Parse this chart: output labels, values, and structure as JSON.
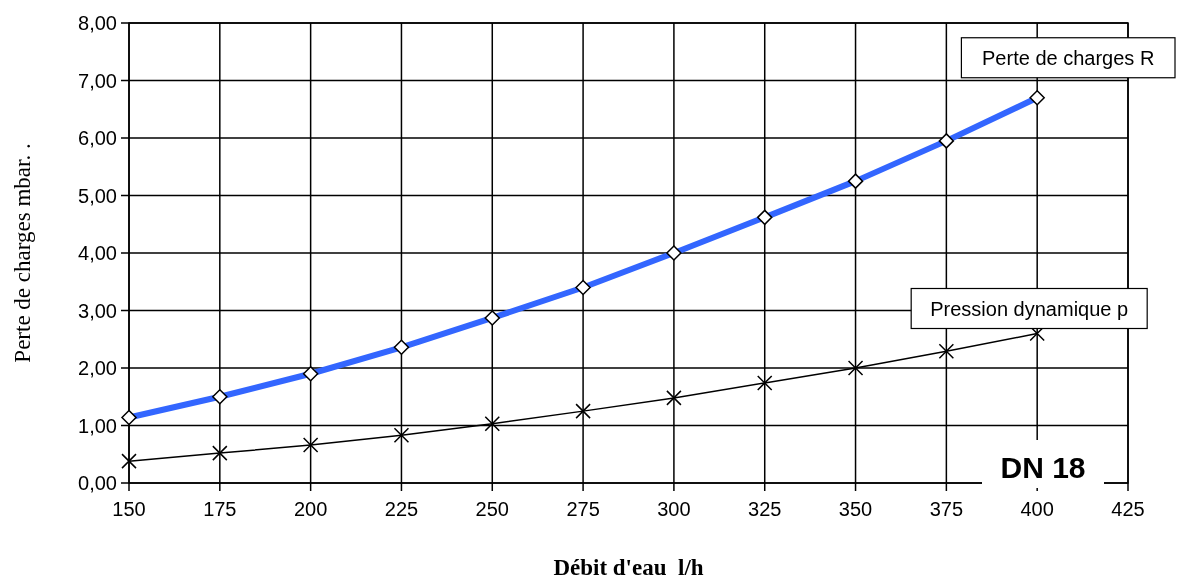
{
  "chart_data": {
    "type": "line",
    "xlabel": "Débit d'eau  l/h",
    "ylabel": "Perte de charges mbar. .",
    "x": [
      150,
      175,
      200,
      225,
      250,
      275,
      300,
      325,
      350,
      375,
      400
    ],
    "series": [
      {
        "name": "Perte de charges R",
        "color": "#3366ff",
        "marker": "diamond",
        "values": [
          1.14,
          1.5,
          1.9,
          2.36,
          2.87,
          3.4,
          4.0,
          4.62,
          5.25,
          5.95,
          6.7
        ]
      },
      {
        "name": "Pression dynamique p",
        "color": "#000000",
        "marker": "cross",
        "values": [
          0.38,
          0.52,
          0.66,
          0.83,
          1.03,
          1.25,
          1.48,
          1.74,
          2.0,
          2.29,
          2.6
        ]
      }
    ],
    "xlim": [
      150,
      425
    ],
    "xticks": [
      150,
      175,
      200,
      225,
      250,
      275,
      300,
      325,
      350,
      375,
      400,
      425
    ],
    "ylim": [
      0,
      8
    ],
    "yticks": [
      {
        "value": 0,
        "label": "0,00"
      },
      {
        "value": 1,
        "label": "1,00"
      },
      {
        "value": 2,
        "label": "2,00"
      },
      {
        "value": 3,
        "label": "3,00"
      },
      {
        "value": 4,
        "label": "4,00"
      },
      {
        "value": 5,
        "label": "5,00"
      },
      {
        "value": 6,
        "label": "6,00"
      },
      {
        "value": 7,
        "label": "7,00"
      },
      {
        "value": 8,
        "label": "8,00"
      }
    ],
    "grid": true,
    "annotations": [
      "DN 18"
    ]
  }
}
